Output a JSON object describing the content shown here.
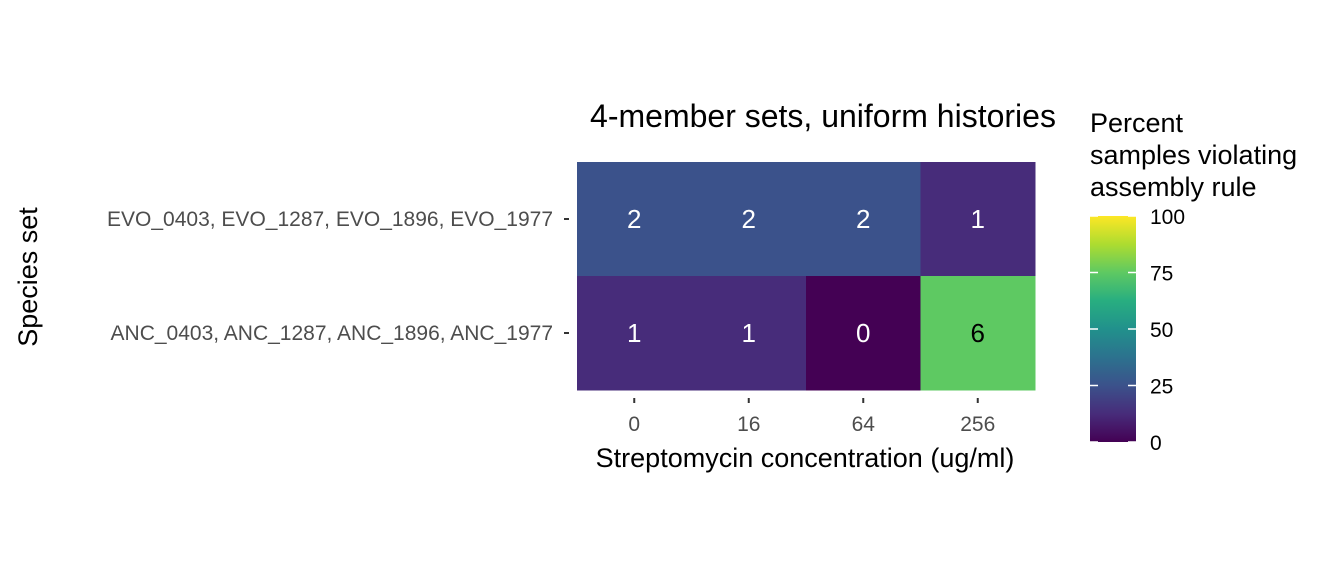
{
  "chart_data": {
    "type": "heatmap",
    "title": "4-member sets, uniform histories",
    "xlabel": "Streptomycin concentration (ug/ml)",
    "ylabel": "Species set",
    "x_categories": [
      "0",
      "16",
      "64",
      "256"
    ],
    "y_categories": [
      "EVO_0403, EVO_1287, EVO_1896, EVO_1977",
      "ANC_0403, ANC_1287, ANC_1896, ANC_1977"
    ],
    "cells": [
      {
        "x": "0",
        "y": "EVO_0403, EVO_1287, EVO_1896, EVO_1977",
        "label": "2",
        "value": 25
      },
      {
        "x": "16",
        "y": "EVO_0403, EVO_1287, EVO_1896, EVO_1977",
        "label": "2",
        "value": 25
      },
      {
        "x": "64",
        "y": "EVO_0403, EVO_1287, EVO_1896, EVO_1977",
        "label": "2",
        "value": 25
      },
      {
        "x": "256",
        "y": "EVO_0403, EVO_1287, EVO_1896, EVO_1977",
        "label": "1",
        "value": 12.5
      },
      {
        "x": "0",
        "y": "ANC_0403, ANC_1287, ANC_1896, ANC_1977",
        "label": "1",
        "value": 12.5
      },
      {
        "x": "16",
        "y": "ANC_0403, ANC_1287, ANC_1896, ANC_1977",
        "label": "1",
        "value": 12.5
      },
      {
        "x": "64",
        "y": "ANC_0403, ANC_1287, ANC_1896, ANC_1977",
        "label": "0",
        "value": 0
      },
      {
        "x": "256",
        "y": "ANC_0403, ANC_1287, ANC_1896, ANC_1977",
        "label": "6",
        "value": 75
      }
    ],
    "legend": {
      "title_lines": [
        "Percent",
        "samples violating",
        "assembly rule"
      ],
      "ticks": [
        0,
        25,
        50,
        75,
        100
      ],
      "range": [
        0,
        100
      ],
      "placement": "right",
      "colormap": "viridis"
    },
    "grid": false
  }
}
